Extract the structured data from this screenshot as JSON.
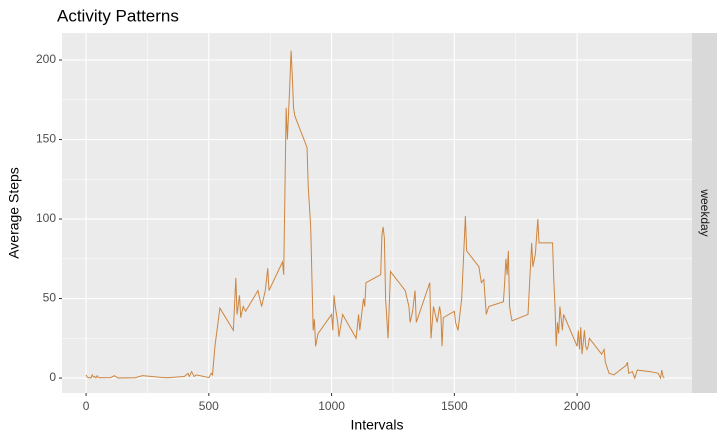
{
  "chart_data": {
    "type": "line",
    "title": "Activity Patterns",
    "x_label": "Intervals",
    "y_label": "Average Steps",
    "facet": "weekday",
    "x": [
      0,
      5,
      10,
      15,
      20,
      25,
      30,
      35,
      40,
      45,
      50,
      55,
      100,
      115,
      130,
      200,
      230,
      300,
      330,
      400,
      415,
      420,
      430,
      440,
      450,
      500,
      510,
      515,
      525,
      545,
      600,
      610,
      615,
      625,
      630,
      640,
      650,
      700,
      715,
      730,
      740,
      745,
      800,
      805,
      815,
      820,
      830,
      835,
      840,
      845,
      850,
      900,
      905,
      915,
      925,
      930,
      935,
      945,
      1000,
      1005,
      1010,
      1015,
      1025,
      1030,
      1045,
      1100,
      1110,
      1115,
      1130,
      1135,
      1140,
      1200,
      1205,
      1210,
      1215,
      1220,
      1230,
      1240,
      1300,
      1315,
      1320,
      1330,
      1340,
      1345,
      1400,
      1405,
      1415,
      1430,
      1440,
      1445,
      1450,
      1455,
      1500,
      1505,
      1515,
      1530,
      1545,
      1550,
      1600,
      1610,
      1620,
      1630,
      1640,
      1700,
      1705,
      1710,
      1715,
      1720,
      1725,
      1730,
      1735,
      1800,
      1815,
      1820,
      1830,
      1840,
      1845,
      1900,
      1905,
      1910,
      1915,
      1920,
      1925,
      1930,
      1940,
      1945,
      2000,
      2005,
      2010,
      2015,
      2020,
      2030,
      2035,
      2040,
      2045,
      2050,
      2100,
      2110,
      2115,
      2130,
      2150,
      2200,
      2205,
      2210,
      2225,
      2235,
      2245,
      2300,
      2330,
      2340,
      2345,
      2350,
      2355
    ],
    "values": [
      2,
      0.5,
      0.2,
      0.2,
      0.1,
      2,
      0.6,
      1,
      0,
      1.5,
      0.4,
      0.2,
      0.3,
      1.5,
      0,
      0.2,
      1.5,
      0.5,
      0.2,
      1,
      3,
      1,
      4,
      1,
      2,
      0.3,
      3,
      2,
      20,
      44,
      30,
      63,
      40,
      52,
      38,
      45,
      42,
      55,
      45,
      55,
      69,
      55,
      73,
      65,
      170,
      150,
      185,
      206,
      190,
      170,
      165,
      145,
      120,
      95,
      30,
      37,
      20,
      28,
      40,
      30,
      52,
      45,
      35,
      26,
      40,
      25,
      40,
      30,
      50,
      45,
      60,
      65,
      90,
      95,
      88,
      50,
      25,
      67,
      55,
      45,
      35,
      42,
      55,
      35,
      60,
      25,
      45,
      35,
      45,
      40,
      20,
      38,
      42,
      35,
      30,
      50,
      102,
      80,
      70,
      60,
      62,
      40,
      45,
      48,
      60,
      75,
      65,
      80,
      45,
      40,
      36,
      40,
      85,
      70,
      78,
      100,
      85,
      85,
      62,
      45,
      20,
      35,
      28,
      45,
      30,
      40,
      20,
      30,
      18,
      32,
      15,
      30,
      20,
      18,
      20,
      25,
      15,
      18,
      10,
      3,
      2,
      8,
      10,
      3,
      4,
      0,
      5,
      4,
      3,
      0,
      5,
      1,
      0
    ],
    "color": "#CD853F",
    "xlim": [
      -98,
      2468
    ],
    "ylim": [
      -9.4,
      217
    ],
    "xticks": [
      0,
      500,
      1000,
      1500,
      2000
    ],
    "yticks": [
      0,
      50,
      100,
      150,
      200
    ],
    "grid": true
  }
}
